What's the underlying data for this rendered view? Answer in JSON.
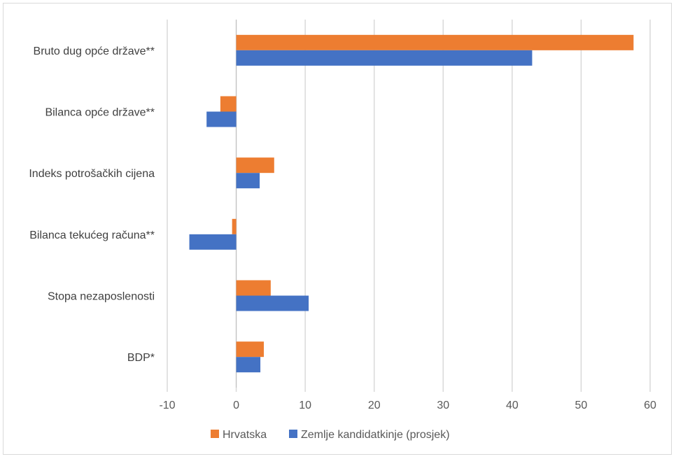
{
  "chart_data": {
    "type": "bar",
    "orientation": "horizontal",
    "title": "",
    "xlabel": "",
    "ylabel": "",
    "categories": [
      "Bruto dug opće države**",
      "Bilanca opće države**",
      "Indeks potrošačkih cijena",
      "Bilanca tekućeg računa**",
      "Stopa nezaposlenosti",
      "BDP*"
    ],
    "series": [
      {
        "name": "Hrvatska",
        "color": "#ED7D31",
        "values": [
          57.6,
          -2.3,
          5.5,
          -0.6,
          5.0,
          4.0
        ]
      },
      {
        "name": "Zemlje kandidatkinje (prosjek)",
        "color": "#4472C4",
        "values": [
          42.9,
          -4.3,
          3.4,
          -6.8,
          10.5,
          3.5
        ]
      }
    ],
    "xlim": [
      -10,
      60
    ],
    "xticks": [
      -10,
      0,
      10,
      20,
      30,
      40,
      50,
      60
    ],
    "grid": "vertical",
    "legend_position": "bottom"
  }
}
